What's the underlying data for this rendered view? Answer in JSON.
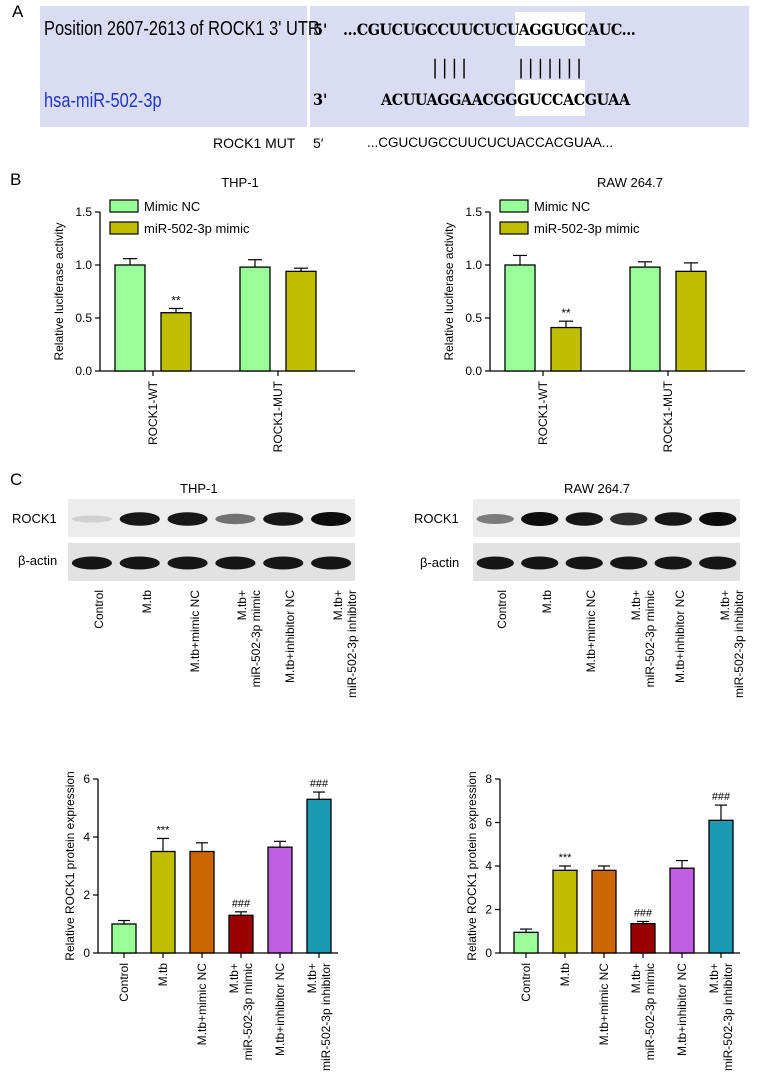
{
  "panel_letters": [
    "A",
    "B",
    "C"
  ],
  "panel_a": {
    "position_label": "Position 2607-2613 of ROCK1 3' UTR",
    "mirna_label": "hsa-miR-502-3p",
    "utr_end": "5'",
    "utr_seq": "...CGUCUGCCUUCUCUAGGUGCAUC...",
    "mirna_end": "3'",
    "mirna_seq": "ACUUAGGAACGGGUCCACGUAA",
    "pair_bars_1": "||||",
    "pair_bars_2": "|||||||",
    "mut_label": "ROCK1 MUT",
    "mut_end": "5′",
    "mut_seq": "...CGUCUGCCUUCUCUACCACGUAA..."
  },
  "colors": {
    "mimic_nc": "#99ff99",
    "mir_mimic": "#bfbf00",
    "control": "#99ff99",
    "mtb": "#bfbf00",
    "mtb_mimic_nc": "#cc6600",
    "mtb_mir_mimic": "#990000",
    "mtb_inhibitor_nc": "#bf5fdf",
    "mtb_mir_inhibitor": "#1a99b3"
  },
  "panel_c_blots": [
    {
      "title": "THP-1",
      "row1": "ROCK1",
      "row2": "β-actin",
      "rock1_intensity": [
        0.12,
        0.95,
        0.95,
        0.55,
        0.95,
        1.0
      ],
      "actin_intensity": [
        0.9,
        0.9,
        0.9,
        0.9,
        0.9,
        0.9
      ]
    },
    {
      "title": "RAW 264.7",
      "row1": "ROCK1",
      "row2": "β-actin",
      "rock1_intensity": [
        0.5,
        1.0,
        0.95,
        0.85,
        0.95,
        1.0
      ],
      "actin_intensity": [
        0.9,
        0.9,
        0.9,
        0.9,
        0.9,
        0.9
      ]
    }
  ],
  "lane_labels": [
    "Control",
    "M.tb",
    "M.tb+mimic NC",
    "M.tb+\nmiR-502-3p mimic",
    "M.tb+inhibitor NC",
    "M.tb+\nmiR-502-3p inhibitor"
  ],
  "chart_data": [
    {
      "type": "bar",
      "title": "THP-1",
      "categories": [
        "ROCK1-WT",
        "ROCK1-MUT"
      ],
      "series": [
        {
          "name": "Mimic NC",
          "values": [
            1.0,
            0.98
          ],
          "errors": [
            0.06,
            0.07
          ]
        },
        {
          "name": "miR-502-3p mimic",
          "values": [
            0.55,
            0.94
          ],
          "errors": [
            0.04,
            0.03
          ]
        }
      ],
      "annotations": [
        {
          "category": 0,
          "series": 1,
          "text": "**"
        }
      ],
      "ylabel": "Relative luciferase activity",
      "ylim": [
        0,
        1.5
      ],
      "yticks": [
        "0.0",
        "0.5",
        "1.0",
        "1.5"
      ],
      "legend": "top-left"
    },
    {
      "type": "bar",
      "title": "RAW 264.7",
      "categories": [
        "ROCK1-WT",
        "ROCK1-MUT"
      ],
      "series": [
        {
          "name": "Mimic NC",
          "values": [
            1.0,
            0.98
          ],
          "errors": [
            0.09,
            0.05
          ]
        },
        {
          "name": "miR-502-3p mimic",
          "values": [
            0.41,
            0.94
          ],
          "errors": [
            0.06,
            0.08
          ]
        }
      ],
      "annotations": [
        {
          "category": 0,
          "series": 1,
          "text": "**"
        }
      ],
      "ylabel": "Relative luciferase activity",
      "ylim": [
        0,
        1.5
      ],
      "yticks": [
        "0.0",
        "0.5",
        "1.0",
        "1.5"
      ],
      "legend": "top-left"
    },
    {
      "type": "bar",
      "categories": [
        "Control",
        "M.tb",
        "M.tb+mimic NC",
        "M.tb+\nmiR-502-3p mimic",
        "M.tb+inhibitor NC",
        "M.tb+\nmiR-502-3p inhibitor"
      ],
      "values": [
        1.0,
        3.5,
        3.5,
        1.3,
        3.65,
        5.3
      ],
      "errors": [
        0.12,
        0.45,
        0.3,
        0.12,
        0.2,
        0.25
      ],
      "annotations": [
        "",
        "***",
        "",
        "###",
        "",
        "###"
      ],
      "ylabel": "Relative ROCK1 protein expression",
      "ylim": [
        0,
        6
      ],
      "yticks": [
        "0",
        "2",
        "4",
        "6"
      ]
    },
    {
      "type": "bar",
      "categories": [
        "Control",
        "M.tb",
        "M.tb+mimic NC",
        "M.tb+\nmiR-502-3p mimic",
        "M.tb+inhibitor NC",
        "M.tb+\nmiR-502-3p inhibitor"
      ],
      "values": [
        0.95,
        3.8,
        3.8,
        1.35,
        3.9,
        6.1
      ],
      "errors": [
        0.15,
        0.2,
        0.2,
        0.1,
        0.35,
        0.7
      ],
      "annotations": [
        "",
        "***",
        "",
        "###",
        "",
        "###"
      ],
      "ylabel": "Relative ROCK1 protein expression",
      "ylim": [
        0,
        8
      ],
      "yticks": [
        "0",
        "2",
        "4",
        "6",
        "8"
      ]
    }
  ]
}
